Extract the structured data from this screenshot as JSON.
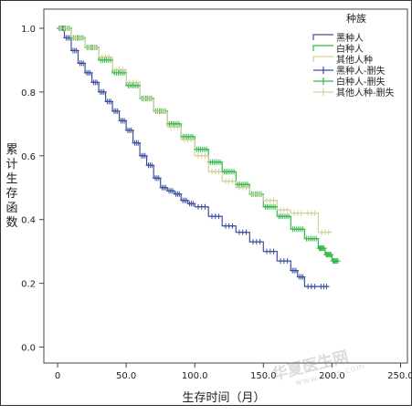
{
  "chart_data": {
    "type": "line",
    "subtype": "kaplan-meier",
    "title": "",
    "xlabel": "生存时间（月）",
    "ylabel": "累计生存函数",
    "xlim": [
      -10,
      255
    ],
    "ylim": [
      -0.05,
      1.06
    ],
    "x_ticks": [
      0,
      50,
      100,
      150,
      200,
      250
    ],
    "x_tick_labels": [
      "0",
      "50.0",
      "100.0",
      "150.0",
      "200.0",
      "250.0"
    ],
    "y_ticks": [
      0.0,
      0.2,
      0.4,
      0.6,
      0.8,
      1.0
    ],
    "y_tick_labels": [
      "0.0",
      "0.2",
      "0.4",
      "0.6",
      "0.8",
      "1.0"
    ],
    "grid": false,
    "legend_position": "top-right",
    "legend_title": "种族",
    "legend_entries": [
      "黑种人",
      "白种人",
      "其他人种",
      "黑种人-删失",
      "白种人-删失",
      "其他人种-删失"
    ],
    "series": [
      {
        "name": "黑种人",
        "color": "#3a4f9e",
        "x": [
          0,
          5,
          10,
          15,
          20,
          25,
          30,
          35,
          40,
          45,
          50,
          55,
          60,
          65,
          70,
          75,
          80,
          85,
          90,
          95,
          100,
          110,
          120,
          130,
          140,
          150,
          160,
          170,
          175,
          180,
          190,
          198
        ],
        "y": [
          1.0,
          0.97,
          0.93,
          0.89,
          0.86,
          0.83,
          0.8,
          0.77,
          0.74,
          0.71,
          0.68,
          0.64,
          0.6,
          0.57,
          0.53,
          0.5,
          0.49,
          0.48,
          0.46,
          0.45,
          0.44,
          0.41,
          0.38,
          0.36,
          0.33,
          0.3,
          0.27,
          0.24,
          0.22,
          0.19,
          0.19,
          0.19
        ]
      },
      {
        "name": "白种人",
        "color": "#33b94a",
        "x": [
          0,
          10,
          20,
          30,
          40,
          50,
          60,
          70,
          80,
          90,
          100,
          110,
          120,
          130,
          140,
          150,
          160,
          170,
          180,
          190,
          195,
          200,
          205
        ],
        "y": [
          1.0,
          0.97,
          0.94,
          0.9,
          0.86,
          0.82,
          0.78,
          0.74,
          0.7,
          0.66,
          0.62,
          0.58,
          0.55,
          0.51,
          0.48,
          0.44,
          0.41,
          0.37,
          0.34,
          0.31,
          0.29,
          0.27,
          0.27
        ]
      },
      {
        "name": "其他人种",
        "color": "#d5cf9c",
        "x": [
          0,
          10,
          20,
          30,
          40,
          50,
          60,
          70,
          80,
          90,
          100,
          110,
          120,
          130,
          140,
          150,
          160,
          170,
          180,
          190,
          200
        ],
        "y": [
          1.0,
          0.97,
          0.94,
          0.91,
          0.87,
          0.83,
          0.78,
          0.74,
          0.69,
          0.65,
          0.6,
          0.55,
          0.52,
          0.5,
          0.48,
          0.46,
          0.43,
          0.42,
          0.42,
          0.36,
          0.36
        ]
      }
    ]
  },
  "watermark": {
    "main": "华夏医生网",
    "sub": "www.sbvs.com"
  }
}
